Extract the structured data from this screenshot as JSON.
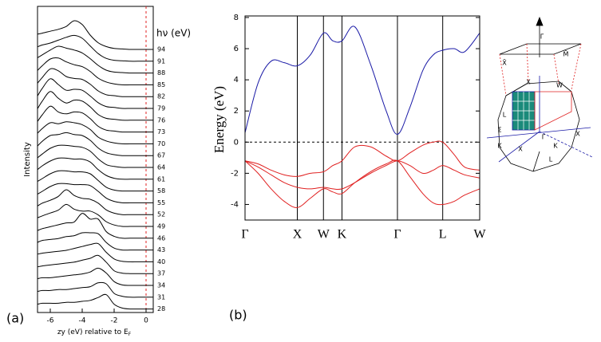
{
  "chart_data": [
    {
      "type": "spectra",
      "panel_label": "(a)",
      "ylabel": "Intensity",
      "xlabel": "zy (eV) relative to E",
      "xlabel_sub": "F",
      "legend_title": "hν (eV)",
      "xlim": [
        -6.8,
        0.45
      ],
      "xticks": [
        -6,
        -4,
        -2,
        0
      ],
      "reference_line": 0,
      "reference_color": "#e02020",
      "x": [
        -6.8,
        -6.5,
        -6,
        -5.5,
        -5,
        -4.5,
        -4,
        -3.5,
        -3,
        -2.5,
        -2,
        -1.5,
        -1,
        -0.5,
        0.45
      ],
      "series": [
        {
          "name": "94",
          "values": [
            1.6,
            1.7,
            1.9,
            2.1,
            2.4,
            3.0,
            2.6,
            1.5,
            0.7,
            0.3,
            0.1,
            0.05,
            0,
            0,
            0
          ]
        },
        {
          "name": "91",
          "values": [
            1.5,
            1.7,
            1.9,
            2.2,
            2.5,
            2.7,
            2.4,
            1.6,
            0.8,
            0.3,
            0.1,
            0.05,
            0,
            0,
            0
          ]
        },
        {
          "name": "88",
          "values": [
            1.6,
            1.9,
            2.4,
            2.8,
            2.6,
            2.4,
            2.1,
            1.5,
            0.8,
            0.3,
            0.1,
            0.05,
            0,
            0,
            0
          ]
        },
        {
          "name": "85",
          "values": [
            1.5,
            2.0,
            2.7,
            2.8,
            2.4,
            2.1,
            1.9,
            1.4,
            0.7,
            0.3,
            0.1,
            0,
            0,
            0,
            0
          ]
        },
        {
          "name": "82",
          "values": [
            1.4,
            2.0,
            2.9,
            2.7,
            2.1,
            1.9,
            1.8,
            1.3,
            0.6,
            0.2,
            0.1,
            0,
            0,
            0,
            0
          ]
        },
        {
          "name": "79",
          "values": [
            1.3,
            2.1,
            3.1,
            2.5,
            1.9,
            2.0,
            1.9,
            1.3,
            0.6,
            0.2,
            0.1,
            0,
            0,
            0,
            0
          ]
        },
        {
          "name": "76",
          "values": [
            1.2,
            2.0,
            3.0,
            2.3,
            1.8,
            2.1,
            2.0,
            1.4,
            0.6,
            0.2,
            0.1,
            0,
            0,
            0,
            0
          ]
        },
        {
          "name": "73",
          "values": [
            1.1,
            1.8,
            2.7,
            2.1,
            1.9,
            2.1,
            2.0,
            1.4,
            0.6,
            0.2,
            0.1,
            0,
            0,
            0,
            0
          ]
        },
        {
          "name": "70",
          "values": [
            1.1,
            1.6,
            2.2,
            2.1,
            2.3,
            2.2,
            2.0,
            1.5,
            0.7,
            0.3,
            0.1,
            0,
            0,
            0,
            0
          ]
        },
        {
          "name": "67",
          "values": [
            1.0,
            1.5,
            2.1,
            2.2,
            2.4,
            2.2,
            2.1,
            1.6,
            0.8,
            0.3,
            0.1,
            0,
            0,
            0,
            0
          ]
        },
        {
          "name": "64",
          "values": [
            1.0,
            1.4,
            2.0,
            2.3,
            2.3,
            2.2,
            2.1,
            1.7,
            0.9,
            0.3,
            0.1,
            0,
            0,
            0,
            0
          ]
        },
        {
          "name": "61",
          "values": [
            1.0,
            1.4,
            1.9,
            2.2,
            2.2,
            2.1,
            2.1,
            1.8,
            1.0,
            0.4,
            0.1,
            0,
            0,
            0,
            0
          ]
        },
        {
          "name": "58",
          "values": [
            1.0,
            1.3,
            1.8,
            2.1,
            2.1,
            2.0,
            2.0,
            1.8,
            1.1,
            0.4,
            0.1,
            0,
            0,
            0,
            0
          ]
        },
        {
          "name": "55",
          "values": [
            0.9,
            1.2,
            1.7,
            2.0,
            2.0,
            1.9,
            1.9,
            1.8,
            1.2,
            0.5,
            0.15,
            0,
            0,
            0,
            0
          ]
        },
        {
          "name": "52",
          "values": [
            0.9,
            1.2,
            1.5,
            1.9,
            2.6,
            2.0,
            1.7,
            1.6,
            1.2,
            0.5,
            0.15,
            0,
            0,
            0,
            0
          ]
        },
        {
          "name": "49",
          "values": [
            0.9,
            1.1,
            1.4,
            1.7,
            2.3,
            1.8,
            1.6,
            1.6,
            1.2,
            0.5,
            0.15,
            0,
            0,
            0,
            0
          ]
        },
        {
          "name": "46",
          "values": [
            0.8,
            1.0,
            1.2,
            1.4,
            1.6,
            1.7,
            2.6,
            2.0,
            2.0,
            0.7,
            0.2,
            0,
            0,
            0,
            0
          ]
        },
        {
          "name": "43",
          "values": [
            0.8,
            1.0,
            1.1,
            1.2,
            1.4,
            1.5,
            1.8,
            1.8,
            1.7,
            0.8,
            0.2,
            0,
            0,
            0,
            0
          ]
        },
        {
          "name": "40",
          "values": [
            0.8,
            0.9,
            1.0,
            1.1,
            1.2,
            1.4,
            1.6,
            1.8,
            1.9,
            1.0,
            0.3,
            0.05,
            0,
            0,
            0
          ]
        },
        {
          "name": "37",
          "values": [
            0.7,
            0.8,
            0.9,
            1.0,
            1.1,
            1.2,
            1.4,
            1.6,
            1.9,
            1.2,
            0.3,
            0.05,
            0,
            0,
            0
          ]
        },
        {
          "name": "34",
          "values": [
            0.7,
            0.8,
            0.8,
            0.9,
            1.0,
            1.1,
            1.2,
            1.4,
            1.8,
            1.3,
            0.4,
            0.05,
            0,
            0,
            0
          ]
        },
        {
          "name": "31",
          "values": [
            0.6,
            0.7,
            0.7,
            0.8,
            0.8,
            0.9,
            1.0,
            1.1,
            1.5,
            1.4,
            0.4,
            0.1,
            0,
            0,
            0
          ]
        },
        {
          "name": "28",
          "values": [
            0.5,
            0.6,
            0.6,
            0.6,
            0.7,
            0.7,
            0.8,
            0.9,
            1.2,
            1.5,
            0.5,
            0.1,
            0,
            0,
            0
          ]
        }
      ]
    },
    {
      "type": "bands",
      "panel_label": "(b)",
      "ylabel": "Energy (eV)",
      "xlim": [
        0,
        4.488
      ],
      "ylim": [
        -5,
        8.1
      ],
      "yticks": [
        -4,
        -2,
        0,
        2,
        4,
        6,
        8
      ],
      "fermi_level": 0,
      "xticks": [
        {
          "value": 0,
          "label": "Γ"
        },
        {
          "value": 1,
          "label": "X"
        },
        {
          "value": 1.5,
          "label": "W"
        },
        {
          "value": 1.854,
          "label": "K"
        },
        {
          "value": 2.915,
          "label": "Γ"
        },
        {
          "value": 3.781,
          "label": "L"
        },
        {
          "value": 4.488,
          "label": "W"
        }
      ],
      "x": [
        0,
        0.25,
        0.5,
        0.75,
        1,
        1.25,
        1.5,
        1.68,
        1.854,
        2.1,
        2.4,
        2.7,
        2.915,
        3.15,
        3.4,
        3.6,
        3.781,
        4.0,
        4.2,
        4.488
      ],
      "series": [
        {
          "color": "#1a1aa6",
          "values": [
            0.6,
            3.8,
            5.2,
            5.1,
            4.9,
            5.6,
            7.0,
            6.5,
            6.5,
            7.4,
            5.0,
            2.0,
            0.5,
            2.2,
            4.6,
            5.6,
            5.9,
            6.0,
            5.8,
            7.0
          ]
        },
        {
          "color": "#e02020",
          "values": [
            -1.2,
            -1.4,
            -1.8,
            -2.1,
            -2.2,
            -2.0,
            -1.9,
            -1.5,
            -1.2,
            -0.3,
            -0.3,
            -0.9,
            -1.2,
            -0.7,
            -0.2,
            0,
            0,
            -0.8,
            -1.6,
            -1.8
          ]
        },
        {
          "color": "#e02020",
          "values": [
            -1.2,
            -1.6,
            -2.1,
            -2.6,
            -2.9,
            -3.0,
            -2.9,
            -3.0,
            -3.0,
            -2.6,
            -2.0,
            -1.5,
            -1.2,
            -1.5,
            -2.0,
            -1.8,
            -1.5,
            -1.8,
            -2.1,
            -2.3
          ]
        },
        {
          "color": "#e02020",
          "values": [
            -1.2,
            -2.0,
            -3.0,
            -3.8,
            -4.2,
            -3.6,
            -3.0,
            -3.2,
            -3.3,
            -2.6,
            -1.9,
            -1.4,
            -1.2,
            -2.2,
            -3.3,
            -3.9,
            -4.0,
            -3.8,
            -3.4,
            -3.0
          ]
        }
      ],
      "bz_labels": [
        "Γ̄",
        "X̄",
        "M̄",
        "X",
        "W",
        "L",
        "Σ",
        "Γ",
        "K",
        "X",
        "K",
        "X",
        "L"
      ]
    }
  ]
}
